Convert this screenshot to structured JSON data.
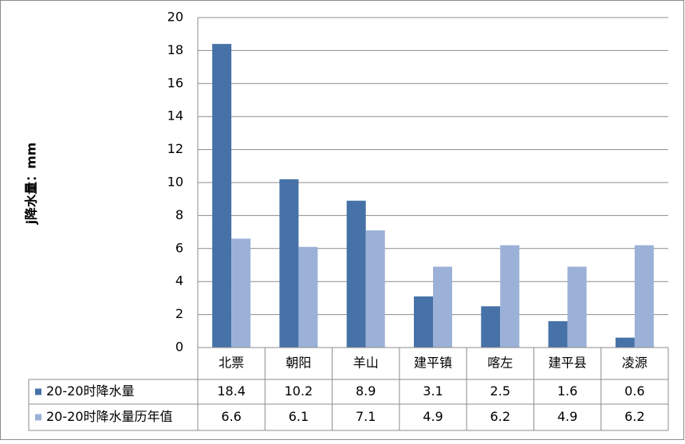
{
  "chart_data": {
    "type": "bar",
    "y_label": "j降水量：mm",
    "categories": [
      "北票",
      "朝阳",
      "羊山",
      "建平镇",
      "喀左",
      "建平县",
      "凌源"
    ],
    "series": [
      {
        "name": "20-20时降水量",
        "color": "#4672a8",
        "values": [
          18.4,
          10.2,
          8.9,
          3.1,
          2.5,
          1.6,
          0.6
        ]
      },
      {
        "name": "20-20时降水量历年值",
        "color": "#9bb1d8",
        "values": [
          6.6,
          6.1,
          7.1,
          4.9,
          6.2,
          4.9,
          6.2
        ]
      }
    ],
    "ylim": [
      0,
      20
    ],
    "yticks": [
      0,
      2,
      4,
      6,
      8,
      10,
      12,
      14,
      16,
      18,
      20
    ],
    "grid": true,
    "data_table": true
  }
}
